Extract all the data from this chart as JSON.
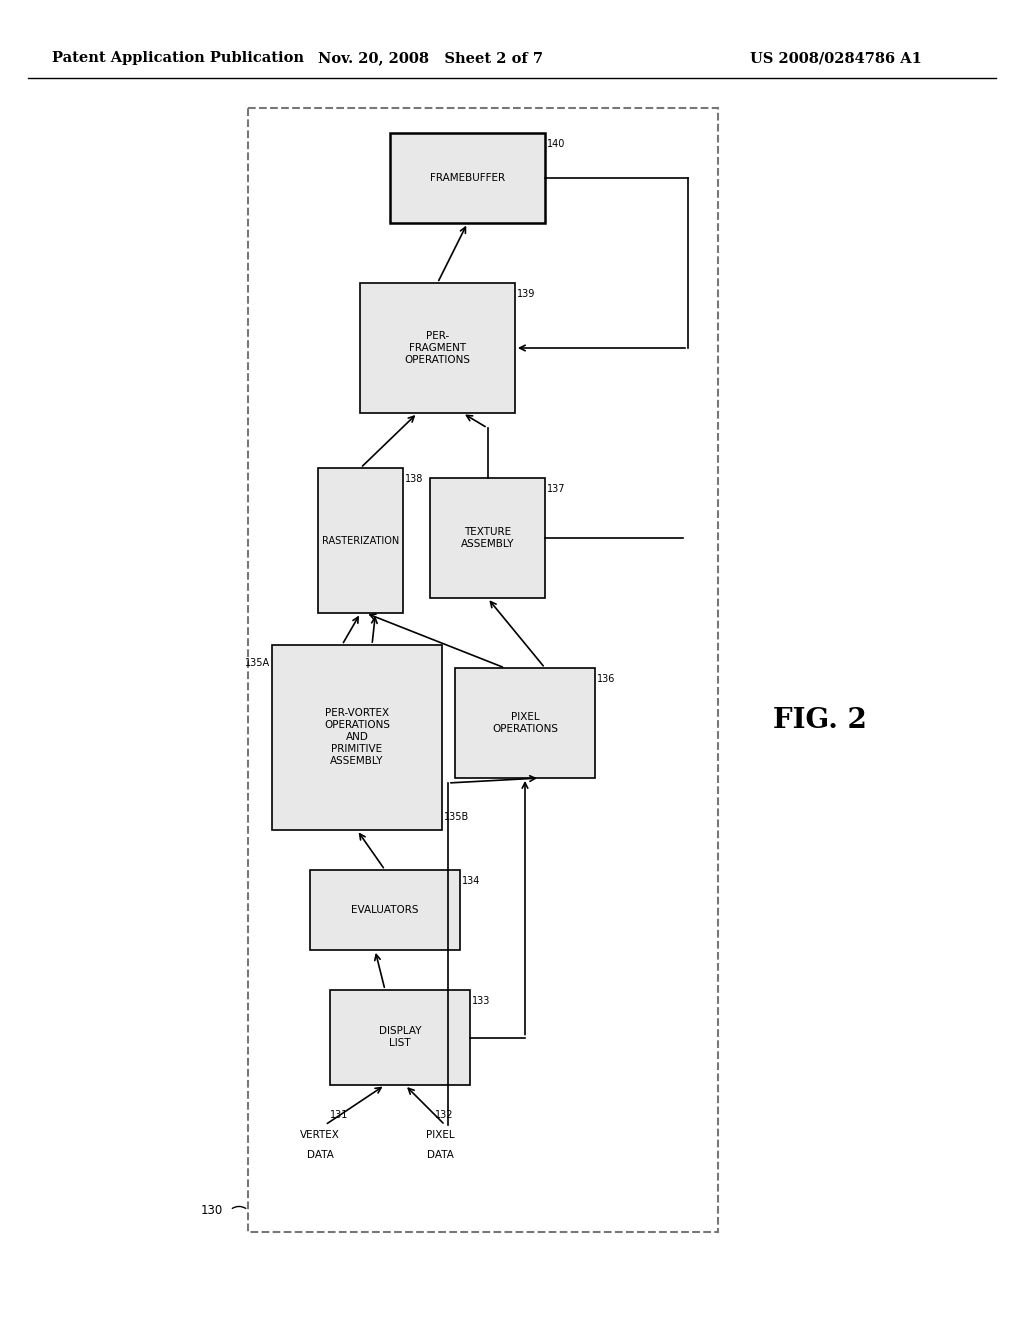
{
  "header_left": "Patent Application Publication",
  "header_mid": "Nov. 20, 2008   Sheet 2 of 7",
  "header_right": "US 2008/0284786 A1",
  "fig_label": "FIG. 2",
  "background_color": "#ffffff",
  "line_color": "#000000",
  "box_fill_light": "#e8e8e8",
  "box_fill_white": "#ffffff",
  "outer_label": "130"
}
